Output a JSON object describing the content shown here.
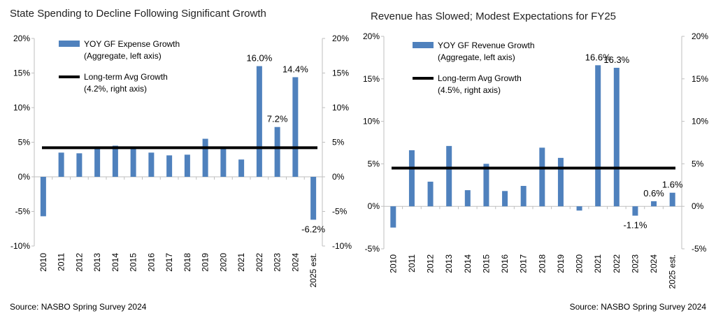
{
  "source_left": "Source: NASBO Spring Survey 2024",
  "source_right": "Source: NASBO Spring Survey 2024",
  "colors": {
    "bar": "#4f81bd",
    "avg_line": "#000000",
    "axis": "#bfbfbf"
  },
  "chart_data": [
    {
      "type": "bar",
      "title": "State Spending to Decline Following Significant Growth",
      "categories": [
        "2010",
        "2011",
        "2012",
        "2013",
        "2014",
        "2015",
        "2016",
        "2017",
        "2018",
        "2019",
        "2020",
        "2021",
        "2022",
        "2023",
        "2024",
        "2025 est."
      ],
      "series": [
        {
          "name": "YOY GF Expense Growth",
          "legend_sub": "(Aggregate, left axis)",
          "values": [
            -5.7,
            3.5,
            3.4,
            4.2,
            4.5,
            4.3,
            3.5,
            3.1,
            3.2,
            5.5,
            4.1,
            2.5,
            16.0,
            7.2,
            14.4,
            -6.2
          ]
        },
        {
          "name": "Long-term Avg Growth",
          "legend_sub": "(4.2%, right axis)",
          "value": 4.2
        }
      ],
      "data_labels": [
        {
          "index": 12,
          "text": "16.0%"
        },
        {
          "index": 13,
          "text": "7.2%"
        },
        {
          "index": 14,
          "text": "14.4%"
        },
        {
          "index": 15,
          "text": "-6.2%"
        }
      ],
      "ylim": [
        -10,
        20
      ],
      "yticks": [
        -10,
        -5,
        0,
        5,
        10,
        15,
        20
      ],
      "ytick_labels": [
        "-10%",
        "-5%",
        "0%",
        "5%",
        "10%",
        "15%",
        "20%"
      ],
      "ytick_labels_right": [
        "-10%",
        "-5%",
        "0%",
        "5%",
        "10%",
        "15%",
        "20%"
      ],
      "legend": "top-left"
    },
    {
      "type": "bar",
      "title": "Revenue has Slowed; Modest Expectations for FY25",
      "categories": [
        "2010",
        "2011",
        "2012",
        "2013",
        "2014",
        "2015",
        "2016",
        "2017",
        "2018",
        "2019",
        "2020",
        "2021",
        "2022",
        "2023",
        "2024",
        "2025 est."
      ],
      "series": [
        {
          "name": "YOY GF Revenue Growth",
          "legend_sub": "(Aggregate, left axis)",
          "values": [
            -2.5,
            6.6,
            2.9,
            7.1,
            1.9,
            5.0,
            1.8,
            2.4,
            6.9,
            5.7,
            -0.5,
            16.6,
            16.3,
            -1.1,
            0.6,
            1.6
          ]
        },
        {
          "name": "Long-term Avg Growth",
          "legend_sub": "(4.5%, right axis)",
          "value": 4.5
        }
      ],
      "data_labels": [
        {
          "index": 11,
          "text": "16.6%"
        },
        {
          "index": 12,
          "text": "16.3%"
        },
        {
          "index": 13,
          "text": "-1.1%"
        },
        {
          "index": 14,
          "text": "0.6%"
        },
        {
          "index": 15,
          "text": "1.6%"
        }
      ],
      "ylim": [
        -5,
        20
      ],
      "yticks": [
        -5,
        0,
        5,
        10,
        15,
        20
      ],
      "ytick_labels": [
        "-5%",
        "0%",
        "5%",
        "10%",
        "15%",
        "20%"
      ],
      "ytick_labels_right": [
        "-5%",
        "0%",
        "5%",
        "10%",
        "15%",
        "20%"
      ],
      "legend": "top-left"
    }
  ]
}
